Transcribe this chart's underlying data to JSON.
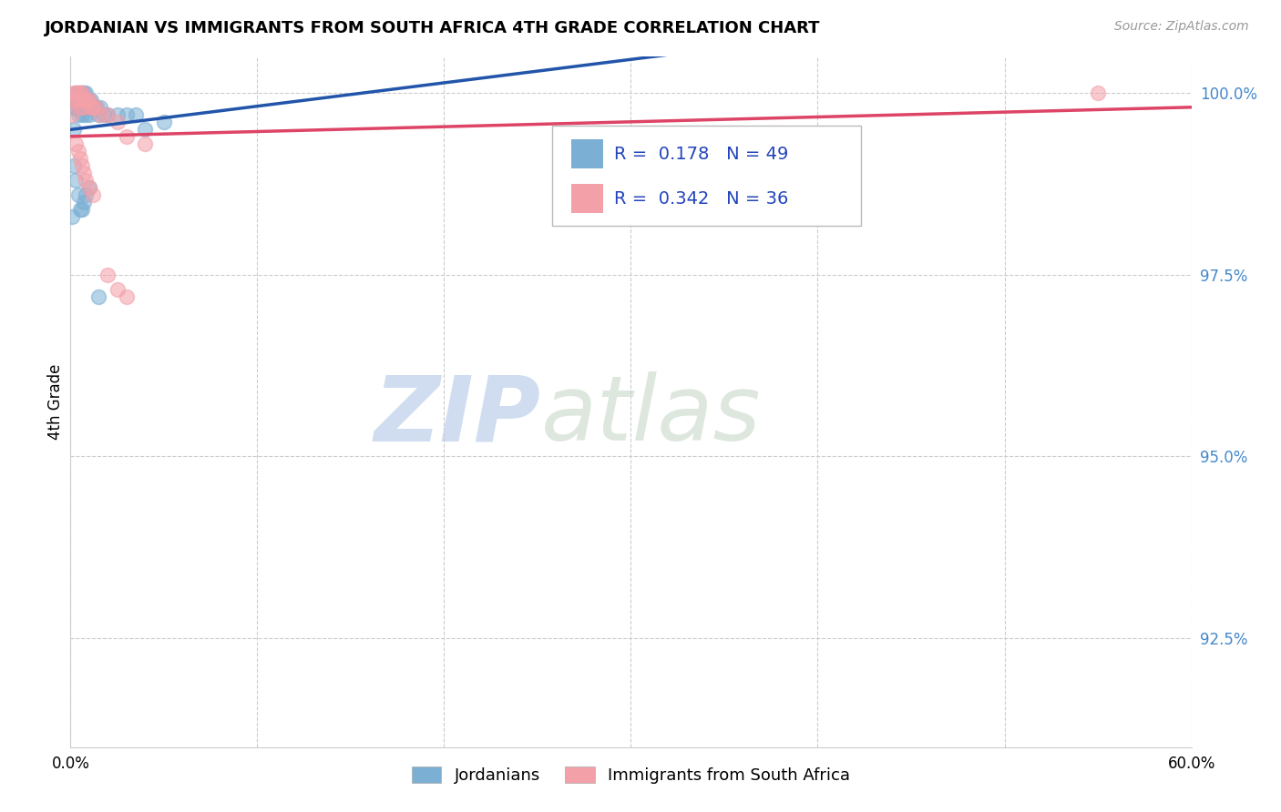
{
  "title": "JORDANIAN VS IMMIGRANTS FROM SOUTH AFRICA 4TH GRADE CORRELATION CHART",
  "source": "Source: ZipAtlas.com",
  "ylabel": "4th Grade",
  "xlim": [
    0.0,
    0.6
  ],
  "ylim": [
    0.91,
    1.005
  ],
  "yticks": [
    0.925,
    0.95,
    0.975,
    1.0
  ],
  "ytick_labels": [
    "92.5%",
    "95.0%",
    "97.5%",
    "100.0%"
  ],
  "xticks": [
    0.0,
    0.1,
    0.2,
    0.3,
    0.4,
    0.5,
    0.6
  ],
  "xtick_labels": [
    "0.0%",
    "",
    "",
    "",
    "",
    "",
    "60.0%"
  ],
  "blue_R": 0.178,
  "blue_N": 49,
  "pink_R": 0.342,
  "pink_N": 36,
  "blue_color": "#7BAFD4",
  "pink_color": "#F4A0A8",
  "blue_line_color": "#2255AA",
  "pink_line_color": "#DD4466",
  "legend_label_blue": "Jordanians",
  "legend_label_pink": "Immigrants from South Africa",
  "watermark_zip": "ZIP",
  "watermark_atlas": "atlas",
  "blue_x": [
    0.001,
    0.002,
    0.002,
    0.002,
    0.003,
    0.003,
    0.003,
    0.004,
    0.004,
    0.004,
    0.005,
    0.005,
    0.005,
    0.006,
    0.006,
    0.006,
    0.007,
    0.007,
    0.007,
    0.008,
    0.008,
    0.008,
    0.009,
    0.009,
    0.01,
    0.01,
    0.011,
    0.011,
    0.012,
    0.013,
    0.014,
    0.015,
    0.016,
    0.018,
    0.02,
    0.025,
    0.03,
    0.035,
    0.04,
    0.05,
    0.002,
    0.003,
    0.004,
    0.005,
    0.006,
    0.007,
    0.008,
    0.01,
    0.015
  ],
  "blue_y": [
    0.983,
    0.999,
    0.998,
    0.995,
    1.0,
    0.999,
    0.998,
    1.0,
    0.999,
    0.997,
    1.0,
    0.999,
    0.998,
    1.0,
    0.999,
    0.997,
    1.0,
    0.999,
    0.998,
    1.0,
    0.999,
    0.997,
    0.999,
    0.998,
    0.999,
    0.997,
    0.999,
    0.998,
    0.998,
    0.998,
    0.998,
    0.997,
    0.998,
    0.997,
    0.997,
    0.997,
    0.997,
    0.997,
    0.995,
    0.996,
    0.99,
    0.988,
    0.986,
    0.984,
    0.984,
    0.985,
    0.986,
    0.987,
    0.972
  ],
  "pink_x": [
    0.001,
    0.002,
    0.002,
    0.003,
    0.003,
    0.004,
    0.004,
    0.005,
    0.005,
    0.006,
    0.006,
    0.007,
    0.007,
    0.008,
    0.009,
    0.01,
    0.011,
    0.012,
    0.014,
    0.016,
    0.02,
    0.025,
    0.03,
    0.04,
    0.003,
    0.004,
    0.005,
    0.006,
    0.007,
    0.008,
    0.01,
    0.012,
    0.02,
    0.025,
    0.03,
    0.55
  ],
  "pink_y": [
    0.997,
    1.0,
    0.999,
    1.0,
    0.999,
    1.0,
    0.999,
    1.0,
    0.998,
    1.0,
    0.999,
    0.999,
    0.998,
    0.999,
    0.999,
    0.999,
    0.998,
    0.998,
    0.998,
    0.997,
    0.997,
    0.996,
    0.994,
    0.993,
    0.993,
    0.992,
    0.991,
    0.99,
    0.989,
    0.988,
    0.987,
    0.986,
    0.975,
    0.973,
    0.972,
    1.0
  ]
}
